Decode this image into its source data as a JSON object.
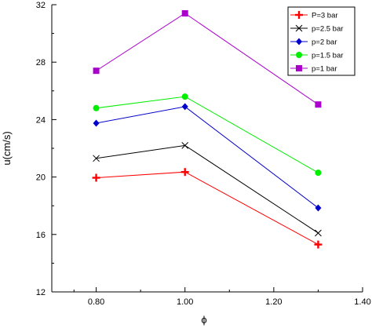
{
  "chart_data": {
    "type": "line",
    "title": "",
    "xlabel": "ϕ",
    "ylabel": "u(cm/s)",
    "xlim": [
      0.7,
      1.4
    ],
    "ylim": [
      12,
      32
    ],
    "xticks": [
      0.8,
      1.0,
      1.2,
      1.4
    ],
    "xtick_labels": [
      "0.80",
      "1.00",
      "1.20",
      "1.40"
    ],
    "yticks": [
      12,
      16,
      20,
      24,
      28,
      32
    ],
    "ytick_labels": [
      "12",
      "16",
      "20",
      "24",
      "28",
      "32"
    ],
    "grid": false,
    "legend_position": "top-right",
    "x": [
      0.8,
      1.0,
      1.3
    ],
    "series": [
      {
        "name": "P=3 bar",
        "values": [
          19.95,
          20.35,
          15.3
        ],
        "color": "#ff0000",
        "marker": "plus"
      },
      {
        "name": "p=2.5 bar",
        "values": [
          21.3,
          22.2,
          16.1
        ],
        "color": "#000000",
        "marker": "cross"
      },
      {
        "name": "p=2 bar",
        "values": [
          23.75,
          24.9,
          17.85
        ],
        "color": "#0000cc",
        "marker": "diamond"
      },
      {
        "name": "p=1.5 bar",
        "values": [
          24.8,
          25.6,
          20.3
        ],
        "color": "#00ee00",
        "marker": "circle"
      },
      {
        "name": "p=1 bar",
        "values": [
          27.4,
          31.4,
          25.05
        ],
        "color": "#aa00cc",
        "marker": "square"
      }
    ]
  }
}
